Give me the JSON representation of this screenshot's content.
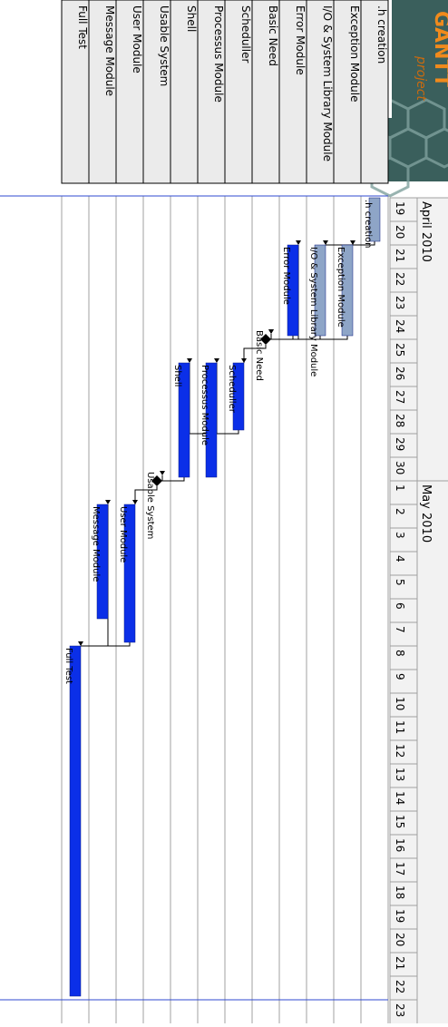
{
  "app": {
    "logo_text": "GANTT",
    "logo_subtext": "project"
  },
  "timeline": {
    "months": [
      {
        "label": "April 2010",
        "first_day_index": 0
      },
      {
        "label": "May 2010",
        "first_day_index": 12
      }
    ],
    "days": [
      "19",
      "20",
      "21",
      "22",
      "23",
      "24",
      "25",
      "26",
      "27",
      "28",
      "29",
      "30",
      "1",
      "2",
      "3",
      "4",
      "5",
      "6",
      "7",
      "8",
      "9",
      "10",
      "11",
      "12",
      "13",
      "14",
      "15",
      "16",
      "17",
      "18",
      "19",
      "20",
      "21",
      "22",
      "23"
    ]
  },
  "tasks": [
    {
      "id": "t0",
      "name": ".h creation",
      "bar_label": ".h creation",
      "start": 0,
      "end": 1,
      "type": "task",
      "color": "#8ea5c7"
    },
    {
      "id": "t1",
      "name": "Exception Module",
      "bar_label": "Exception Module",
      "start": 2,
      "end": 5,
      "type": "task",
      "color": "#8ea5c7"
    },
    {
      "id": "t2",
      "name": "I/O & System Library Module",
      "bar_label": "I/O & System Library Module",
      "start": 2,
      "end": 5,
      "type": "task",
      "color": "#8ea5c7"
    },
    {
      "id": "t3",
      "name": "Error Module",
      "bar_label": "Error Module",
      "start": 2,
      "end": 5,
      "type": "task",
      "color": "#0b2fe8"
    },
    {
      "id": "t4",
      "name": "Basic Need",
      "bar_label": "Basic Need",
      "start": 6,
      "end": 6,
      "type": "milestone",
      "color": "#000000"
    },
    {
      "id": "t5",
      "name": "Scheduller",
      "bar_label": "Scheduller",
      "start": 7,
      "end": 9,
      "type": "task",
      "color": "#0b2fe8"
    },
    {
      "id": "t6",
      "name": "Processus Module",
      "bar_label": "Processus Module",
      "start": 7,
      "end": 11,
      "type": "task",
      "color": "#0b2fe8"
    },
    {
      "id": "t7",
      "name": "Shell",
      "bar_label": "Shell",
      "start": 7,
      "end": 11,
      "type": "task",
      "color": "#0b2fe8"
    },
    {
      "id": "t8",
      "name": "Usable System",
      "bar_label": "Usable System",
      "start": 12,
      "end": 12,
      "type": "milestone",
      "color": "#000000"
    },
    {
      "id": "t9",
      "name": "User Module",
      "bar_label": "User Module",
      "start": 13,
      "end": 18,
      "type": "task",
      "color": "#0b2fe8"
    },
    {
      "id": "t10",
      "name": "Message Module",
      "bar_label": "Message Module",
      "start": 13,
      "end": 17,
      "type": "task",
      "color": "#0b2fe8"
    },
    {
      "id": "t11",
      "name": "Full Test",
      "bar_label": "Full Test",
      "start": 19,
      "end": 33,
      "type": "task",
      "color": "#0b2fe8"
    }
  ],
  "dependencies": [
    {
      "from": "t0",
      "to": "t1"
    },
    {
      "from": "t0",
      "to": "t2"
    },
    {
      "from": "t2",
      "to": "t3"
    },
    {
      "from": "t1",
      "to": "t4"
    },
    {
      "from": "t3",
      "to": "t4"
    },
    {
      "from": "t4",
      "to": "t5"
    },
    {
      "from": "t5",
      "to": "t6"
    },
    {
      "from": "t5",
      "to": "t7"
    },
    {
      "from": "t7",
      "to": "t8"
    },
    {
      "from": "t8",
      "to": "t9"
    },
    {
      "from": "t9",
      "to": "t10"
    },
    {
      "from": "t9",
      "to": "t11"
    }
  ],
  "colors": {
    "grid_line": "#a0a0a0",
    "name_cell_bg": "#ebebeb",
    "header_bg": "#f2f2f2",
    "today_line": "#2f4ad0",
    "logo_bg": "#3a5f5c",
    "logo_orange": "#f08a1c"
  }
}
